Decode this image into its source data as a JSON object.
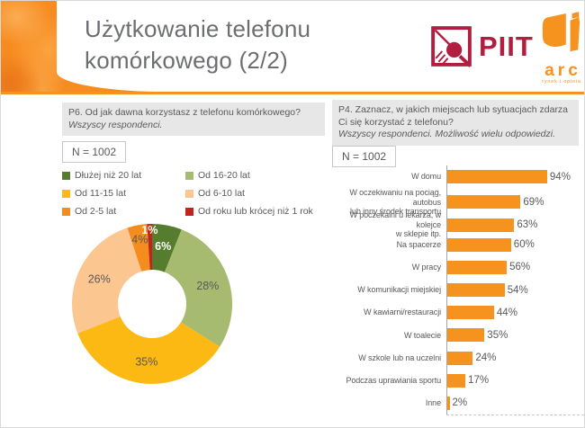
{
  "slide": {
    "title": "Użytkowanie telefonu\nkomórkowego (2/2)"
  },
  "logos": {
    "piit": "PIIT",
    "arc": "arc",
    "arc_subtitle": "rynek i opinia"
  },
  "left_panel": {
    "question": "P6. Od jak dawna korzystasz z telefonu komórkowego?",
    "note": "Wszyscy respondenci.",
    "sample": "N = 1002"
  },
  "right_panel": {
    "question": "P4. Zaznacz, w jakich miejscach lub sytuacjach zdarza\nCi się korzystać z telefonu?",
    "note": "Wszyscy respondenci. Możliwość wielu odpowiedzi.",
    "sample": "N = 1002"
  },
  "colors": {
    "brand_orange": "#f6921e",
    "piit_crimson": "#b11e3f",
    "title_gray": "#6d6e71",
    "text_gray": "#58595b",
    "question_box_bg": "#e7e7e7"
  },
  "chart_data": [
    {
      "type": "pie",
      "subtype": "donut",
      "labels": [
        "Dłużej niż 20 lat",
        "Od 16-20 lat",
        "Od 11-15 lat",
        "Od 6-10 lat",
        "Od 2-5 lat",
        "Od roku lub krócej niż 1 rok"
      ],
      "values": [
        6,
        28,
        35,
        26,
        4,
        1
      ],
      "unit": "%",
      "colors": [
        "#567d2e",
        "#a6bb6f",
        "#fcb813",
        "#fbc690",
        "#f58c1e",
        "#c2231e"
      ],
      "label_colors": [
        "#ffffff",
        "#595959",
        "#595959",
        "#595959",
        "#595959",
        "#ffffff"
      ],
      "start_angle_deg": 0,
      "direction": "clockwise",
      "legend_position": "above",
      "legend_columns": 2
    },
    {
      "type": "bar",
      "orientation": "horizontal",
      "categories": [
        "W domu",
        "W oczekiwaniu na pociąg, autobus\nlub inny środek transportu",
        "W poczekalni u lekarza, w kolejce\nw sklepie itp.",
        "Na spacerze",
        "W pracy",
        "W komunikacji miejskiej",
        "W kawiarni/restauracji",
        "W toalecie",
        "W szkole lub na uczelni",
        "Podczas uprawiania sportu",
        "Inne"
      ],
      "values": [
        94,
        69,
        63,
        60,
        56,
        54,
        44,
        35,
        24,
        17,
        2
      ],
      "unit": "%",
      "bar_color": "#f6921e",
      "xlim": [
        0,
        100
      ],
      "grid": false
    }
  ]
}
